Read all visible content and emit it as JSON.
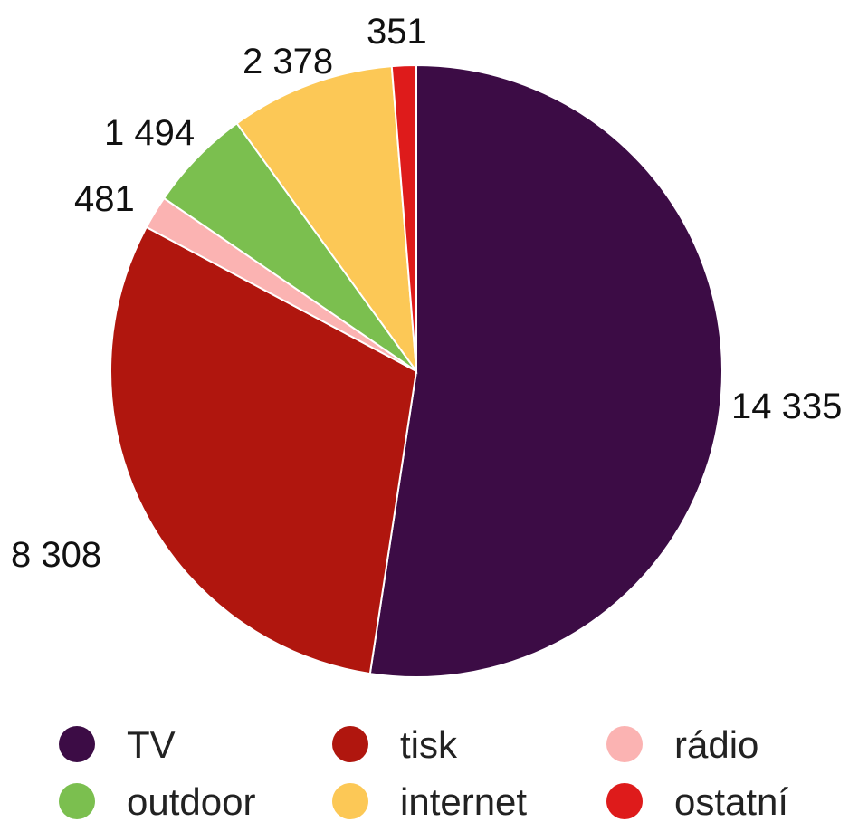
{
  "chart_data": {
    "type": "pie",
    "title": "",
    "categories": [
      "TV",
      "tisk",
      "rádio",
      "outdoor",
      "internet",
      "ostatní"
    ],
    "values": [
      14335,
      8308,
      481,
      1494,
      2378,
      351
    ],
    "value_labels": [
      "14 335",
      "8 308",
      "481",
      "1 494",
      "2 378",
      "351"
    ],
    "colors": [
      "#3c0c45",
      "#b0160e",
      "#fbb3b2",
      "#7bbf4f",
      "#fcc856",
      "#de1b1b"
    ],
    "start": "12 o'clock",
    "direction": "clockwise",
    "legend": {
      "position": "bottom",
      "columns": 3,
      "entries": [
        "TV",
        "tisk",
        "rádio",
        "outdoor",
        "internet",
        "ostatní"
      ]
    }
  }
}
